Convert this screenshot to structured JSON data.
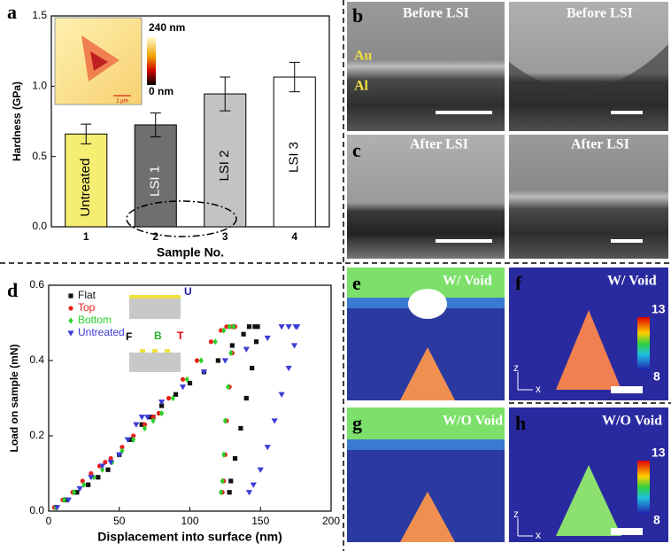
{
  "chart_data": [
    {
      "type": "bar",
      "panel": "a",
      "xlabel": "Sample No.",
      "ylabel": "Hardness (GPa)",
      "categories": [
        "1",
        "2",
        "3",
        "4"
      ],
      "values": [
        0.66,
        0.725,
        0.945,
        1.065
      ],
      "errors": [
        0.07,
        0.085,
        0.12,
        0.105
      ],
      "bar_labels": [
        "Untreated",
        "LSI 1",
        "LSI 2",
        "LSI 3"
      ],
      "colors": [
        "#f6ee72",
        "#6f6f6f",
        "#c3c3c3",
        "#ffffff"
      ],
      "ylim": [
        0,
        1.5
      ],
      "yticks": [
        {
          "value": 0,
          "label": "0.0"
        },
        {
          "value": 0.5,
          "label": "0.5"
        },
        {
          "value": 1,
          "label": "1.0"
        },
        {
          "value": 1.5,
          "label": "1.5"
        }
      ],
      "inset": {
        "max": "240 nm",
        "min": "0 nm",
        "scale": "1 μm"
      }
    },
    {
      "type": "scatter",
      "panel": "d",
      "xlabel": "Displacement into surface (nm)",
      "ylabel": "Load on sample (mN)",
      "xlim": [
        0,
        200
      ],
      "xticks": [
        0,
        50,
        100,
        150,
        200
      ],
      "ylim": [
        0,
        0.6
      ],
      "yticks": [
        {
          "value": 0,
          "label": "0.0"
        },
        {
          "value": 0.2,
          "label": "0.2"
        },
        {
          "value": 0.4,
          "label": "0.4"
        },
        {
          "value": 0.6,
          "label": "0.6"
        }
      ],
      "legend": "upper left",
      "series": [
        {
          "name": "Flat",
          "color": "#111111",
          "marker": "square",
          "x": [
            5,
            12,
            20,
            28,
            35,
            42,
            50,
            58,
            66,
            72,
            74,
            80,
            90,
            100,
            110,
            120,
            130,
            138,
            142,
            146,
            148,
            147,
            144,
            140,
            136,
            132,
            129,
            128
          ],
          "values": [
            0.01,
            0.03,
            0.05,
            0.07,
            0.09,
            0.11,
            0.15,
            0.19,
            0.23,
            0.25,
            0.25,
            0.28,
            0.31,
            0.34,
            0.37,
            0.4,
            0.44,
            0.47,
            0.49,
            0.49,
            0.49,
            0.45,
            0.38,
            0.3,
            0.22,
            0.14,
            0.08,
            0.05
          ]
        },
        {
          "name": "Top",
          "color": "#e8201c",
          "marker": "circle",
          "x": [
            4,
            10,
            17,
            24,
            30,
            36,
            40,
            44,
            52,
            60,
            68,
            74,
            78,
            85,
            95,
            105,
            115,
            122,
            126,
            130,
            132,
            130,
            128,
            126,
            125,
            124,
            123
          ],
          "values": [
            0.01,
            0.03,
            0.05,
            0.08,
            0.1,
            0.12,
            0.13,
            0.14,
            0.17,
            0.2,
            0.23,
            0.25,
            0.26,
            0.3,
            0.35,
            0.4,
            0.45,
            0.48,
            0.49,
            0.49,
            0.49,
            0.42,
            0.33,
            0.24,
            0.15,
            0.08,
            0.05
          ]
        },
        {
          "name": "Bottom",
          "color": "#2bd12b",
          "marker": "diamond",
          "x": [
            5,
            11,
            18,
            25,
            32,
            38,
            45,
            52,
            60,
            68,
            74,
            80,
            88,
            98,
            108,
            118,
            124,
            128,
            131,
            129,
            127,
            125,
            124,
            123,
            122
          ],
          "values": [
            0.01,
            0.03,
            0.05,
            0.07,
            0.09,
            0.11,
            0.13,
            0.16,
            0.19,
            0.22,
            0.24,
            0.26,
            0.3,
            0.35,
            0.4,
            0.45,
            0.48,
            0.49,
            0.49,
            0.42,
            0.33,
            0.24,
            0.15,
            0.08,
            0.05
          ]
        },
        {
          "name": "Untreated",
          "color": "#3b3bd6",
          "marker": "triangle",
          "x": [
            6,
            14,
            22,
            30,
            38,
            44,
            50,
            56,
            62,
            66,
            70,
            80,
            95,
            110,
            125,
            140,
            155,
            165,
            170,
            175,
            176,
            174,
            170,
            165,
            160,
            155,
            150,
            145,
            142
          ],
          "values": [
            0.01,
            0.03,
            0.06,
            0.09,
            0.12,
            0.13,
            0.15,
            0.19,
            0.23,
            0.25,
            0.25,
            0.29,
            0.33,
            0.37,
            0.4,
            0.43,
            0.46,
            0.49,
            0.49,
            0.49,
            0.49,
            0.44,
            0.38,
            0.31,
            0.24,
            0.17,
            0.11,
            0.07,
            0.05
          ]
        }
      ],
      "inset": {
        "u": "U",
        "f": "F",
        "b": "B",
        "t": "T"
      }
    }
  ],
  "panels": {
    "b": {
      "label": "b",
      "left": "Before LSI",
      "right": "Before LSI",
      "au": "Au",
      "al": "Al"
    },
    "c": {
      "label": "c",
      "left": "After LSI",
      "right": "After LSI"
    },
    "e": {
      "label": "e",
      "text": "W/ Void"
    },
    "f": {
      "label": "f",
      "text": "W/ Void",
      "cmax": "13",
      "cmin": "8",
      "z": "z",
      "x": "x"
    },
    "g": {
      "label": "g",
      "text": "W/O Void"
    },
    "h": {
      "label": "h",
      "text": "W/O Void",
      "cmax": "13",
      "cmin": "8",
      "z": "z",
      "x": "x"
    }
  }
}
